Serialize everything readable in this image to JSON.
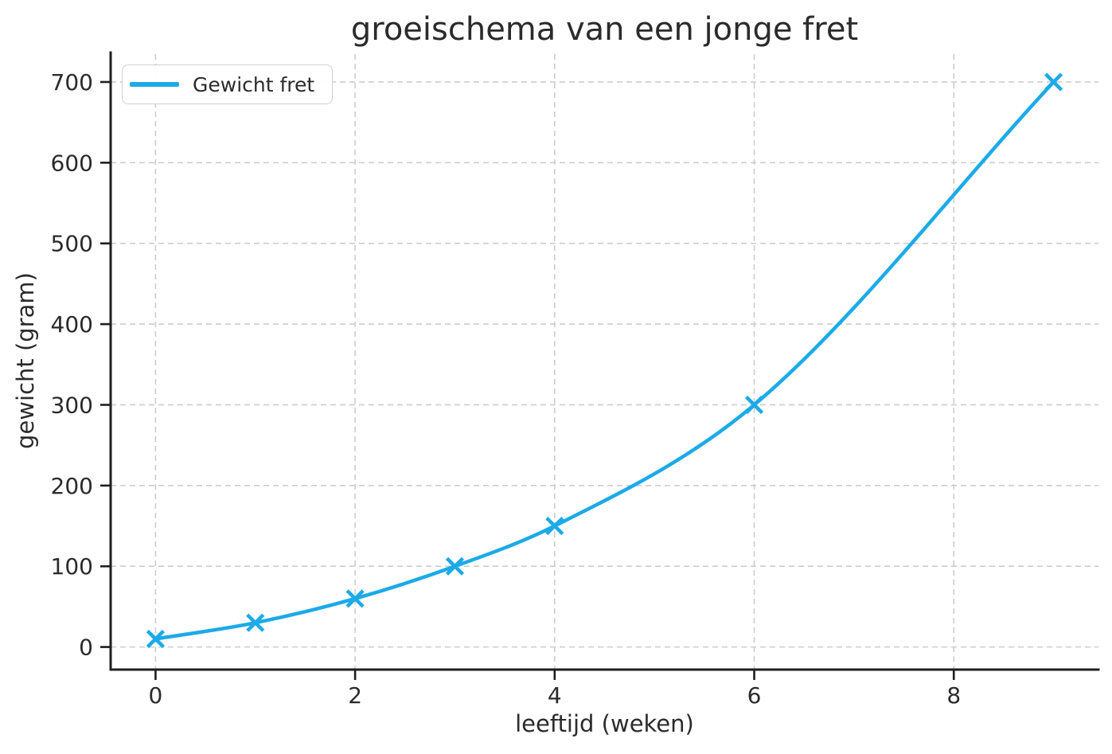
{
  "chart_data": {
    "type": "line",
    "title": "groeischema van een jonge fret",
    "xlabel": "leeftijd (weken)",
    "ylabel": "gewicht (gram)",
    "series": [
      {
        "name": "Gewicht fret",
        "color": "#1caae8",
        "marker": "x",
        "x": [
          0,
          1,
          2,
          3,
          4,
          6,
          9
        ],
        "y": [
          10,
          30,
          60,
          100,
          150,
          300,
          700
        ]
      }
    ],
    "xticks": [
      0,
      2,
      4,
      6,
      8
    ],
    "yticks": [
      0,
      100,
      200,
      300,
      400,
      500,
      600,
      700
    ],
    "xlim": [
      -0.45,
      9.45
    ],
    "ylim": [
      -28,
      734.5
    ],
    "grid": true,
    "legend_position": "upper left",
    "colors": {
      "grid": "#cdcdcd",
      "spine": "#1f1f1f",
      "text": "#2b2b2b"
    }
  }
}
